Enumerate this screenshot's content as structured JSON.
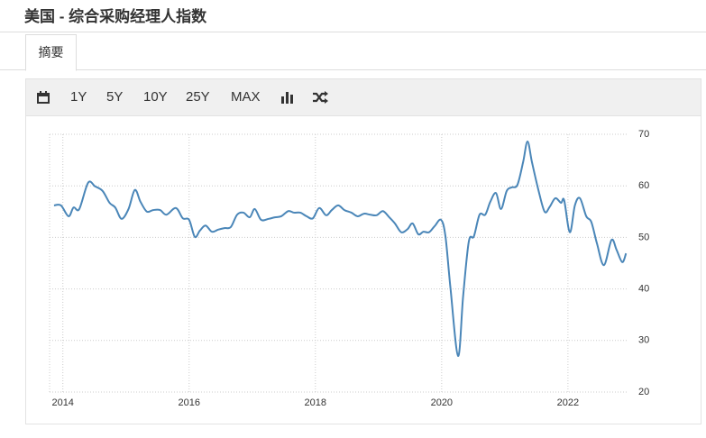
{
  "header": {
    "title": "美国 - 综合采购经理人指数"
  },
  "tabs": [
    "摘要"
  ],
  "toolbar": [
    "1Y",
    "5Y",
    "10Y",
    "25Y",
    "MAX"
  ],
  "chart_data": {
    "type": "line",
    "x": [
      2013.86,
      2013.97,
      2014.09,
      2014.17,
      2014.26,
      2014.4,
      2014.51,
      2014.63,
      2014.74,
      2014.83,
      2014.93,
      2015.04,
      2015.14,
      2015.23,
      2015.33,
      2015.43,
      2015.54,
      2015.64,
      2015.79,
      2015.9,
      2016.0,
      2016.09,
      2016.17,
      2016.26,
      2016.36,
      2016.46,
      2016.56,
      2016.66,
      2016.76,
      2016.86,
      2016.96,
      2017.04,
      2017.14,
      2017.26,
      2017.36,
      2017.46,
      2017.57,
      2017.66,
      2017.76,
      2017.86,
      2017.96,
      2018.06,
      2018.17,
      2018.26,
      2018.36,
      2018.46,
      2018.57,
      2018.67,
      2018.77,
      2018.87,
      2018.97,
      2019.07,
      2019.17,
      2019.26,
      2019.36,
      2019.46,
      2019.54,
      2019.63,
      2019.71,
      2019.8,
      2019.89,
      2019.99,
      2020.06,
      2020.14,
      2020.26,
      2020.34,
      2020.43,
      2020.51,
      2020.6,
      2020.69,
      2020.77,
      2020.86,
      2020.94,
      2021.03,
      2021.11,
      2021.2,
      2021.29,
      2021.36,
      2021.43,
      2021.53,
      2021.63,
      2021.71,
      2021.8,
      2021.89,
      2021.94,
      2022.03,
      2022.11,
      2022.19,
      2022.29,
      2022.37,
      2022.46,
      2022.57,
      2022.69,
      2022.77,
      2022.86,
      2022.92
    ],
    "series": [
      {
        "color": "#4a86b8",
        "values": [
          56.2,
          56.2,
          54.1,
          55.8,
          55.5,
          60.6,
          59.9,
          59,
          56.7,
          55.8,
          53.6,
          55.5,
          59.2,
          56.9,
          55,
          55.3,
          55.3,
          54.4,
          55.7,
          53.7,
          53.4,
          50.1,
          51.3,
          52.3,
          51.1,
          51.5,
          51.8,
          52,
          54.4,
          54.8,
          53.9,
          55.5,
          53.4,
          53.6,
          53.9,
          54.1,
          55.1,
          54.8,
          54.8,
          54.1,
          53.7,
          55.7,
          54.3,
          55.3,
          56.2,
          55.3,
          54.8,
          54.1,
          54.6,
          54.4,
          54.3,
          55.1,
          53.9,
          52.7,
          51,
          51.6,
          52.7,
          50.6,
          51.1,
          51,
          52.2,
          53.4,
          50.2,
          40.1,
          27,
          38.6,
          49.2,
          50.2,
          54.4,
          54.4,
          56.9,
          58.6,
          55.5,
          59,
          59.7,
          60.2,
          64.6,
          68.6,
          64.6,
          59.3,
          55,
          55.9,
          57.6,
          56.7,
          57.2,
          51,
          56.2,
          57.6,
          54.1,
          53,
          48.8,
          44.6,
          49.5,
          47.6,
          45.2,
          46.9
        ]
      }
    ],
    "xlim": [
      2013.79,
      2022.93
    ],
    "ylim": [
      20,
      70
    ],
    "xticks": [
      2014,
      2016,
      2018,
      2020,
      2022
    ],
    "yticks": [
      20,
      30,
      40,
      50,
      60,
      70
    ],
    "grid": true
  }
}
